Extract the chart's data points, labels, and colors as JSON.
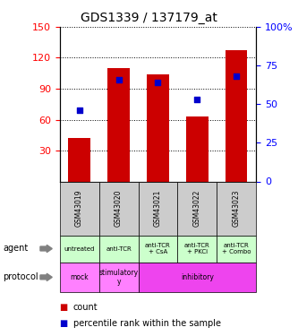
{
  "title": "GDS1339 / 137179_at",
  "samples": [
    "GSM43019",
    "GSM43020",
    "GSM43021",
    "GSM43022",
    "GSM43023"
  ],
  "counts": [
    42,
    110,
    104,
    63,
    127
  ],
  "percentile_ranks": [
    46,
    66,
    64,
    53,
    68
  ],
  "ylim_left": [
    0,
    150
  ],
  "ylim_right": [
    0,
    100
  ],
  "yticks_left": [
    30,
    60,
    90,
    120,
    150
  ],
  "yticks_right": [
    0,
    25,
    50,
    75,
    100
  ],
  "bar_color": "#cc0000",
  "dot_color": "#0000cc",
  "agent_labels": [
    "untreated",
    "anti-TCR",
    "anti-TCR\n+ CsA",
    "anti-TCR\n+ PKCi",
    "anti-TCR\n+ Combo"
  ],
  "sample_bg_color": "#cccccc",
  "agent_bg_color": "#ccffcc",
  "mock_color": "#ff80ff",
  "stimulatory_color": "#ff80ff",
  "inhibitory_color": "#ee44ee",
  "legend_count_color": "#cc0000",
  "legend_pct_color": "#0000cc",
  "proto_groups": [
    {
      "label": "mock",
      "start": 0,
      "end": 1
    },
    {
      "label": "stimulatory\ny",
      "start": 1,
      "end": 2
    },
    {
      "label": "inhibitory",
      "start": 2,
      "end": 5
    }
  ]
}
